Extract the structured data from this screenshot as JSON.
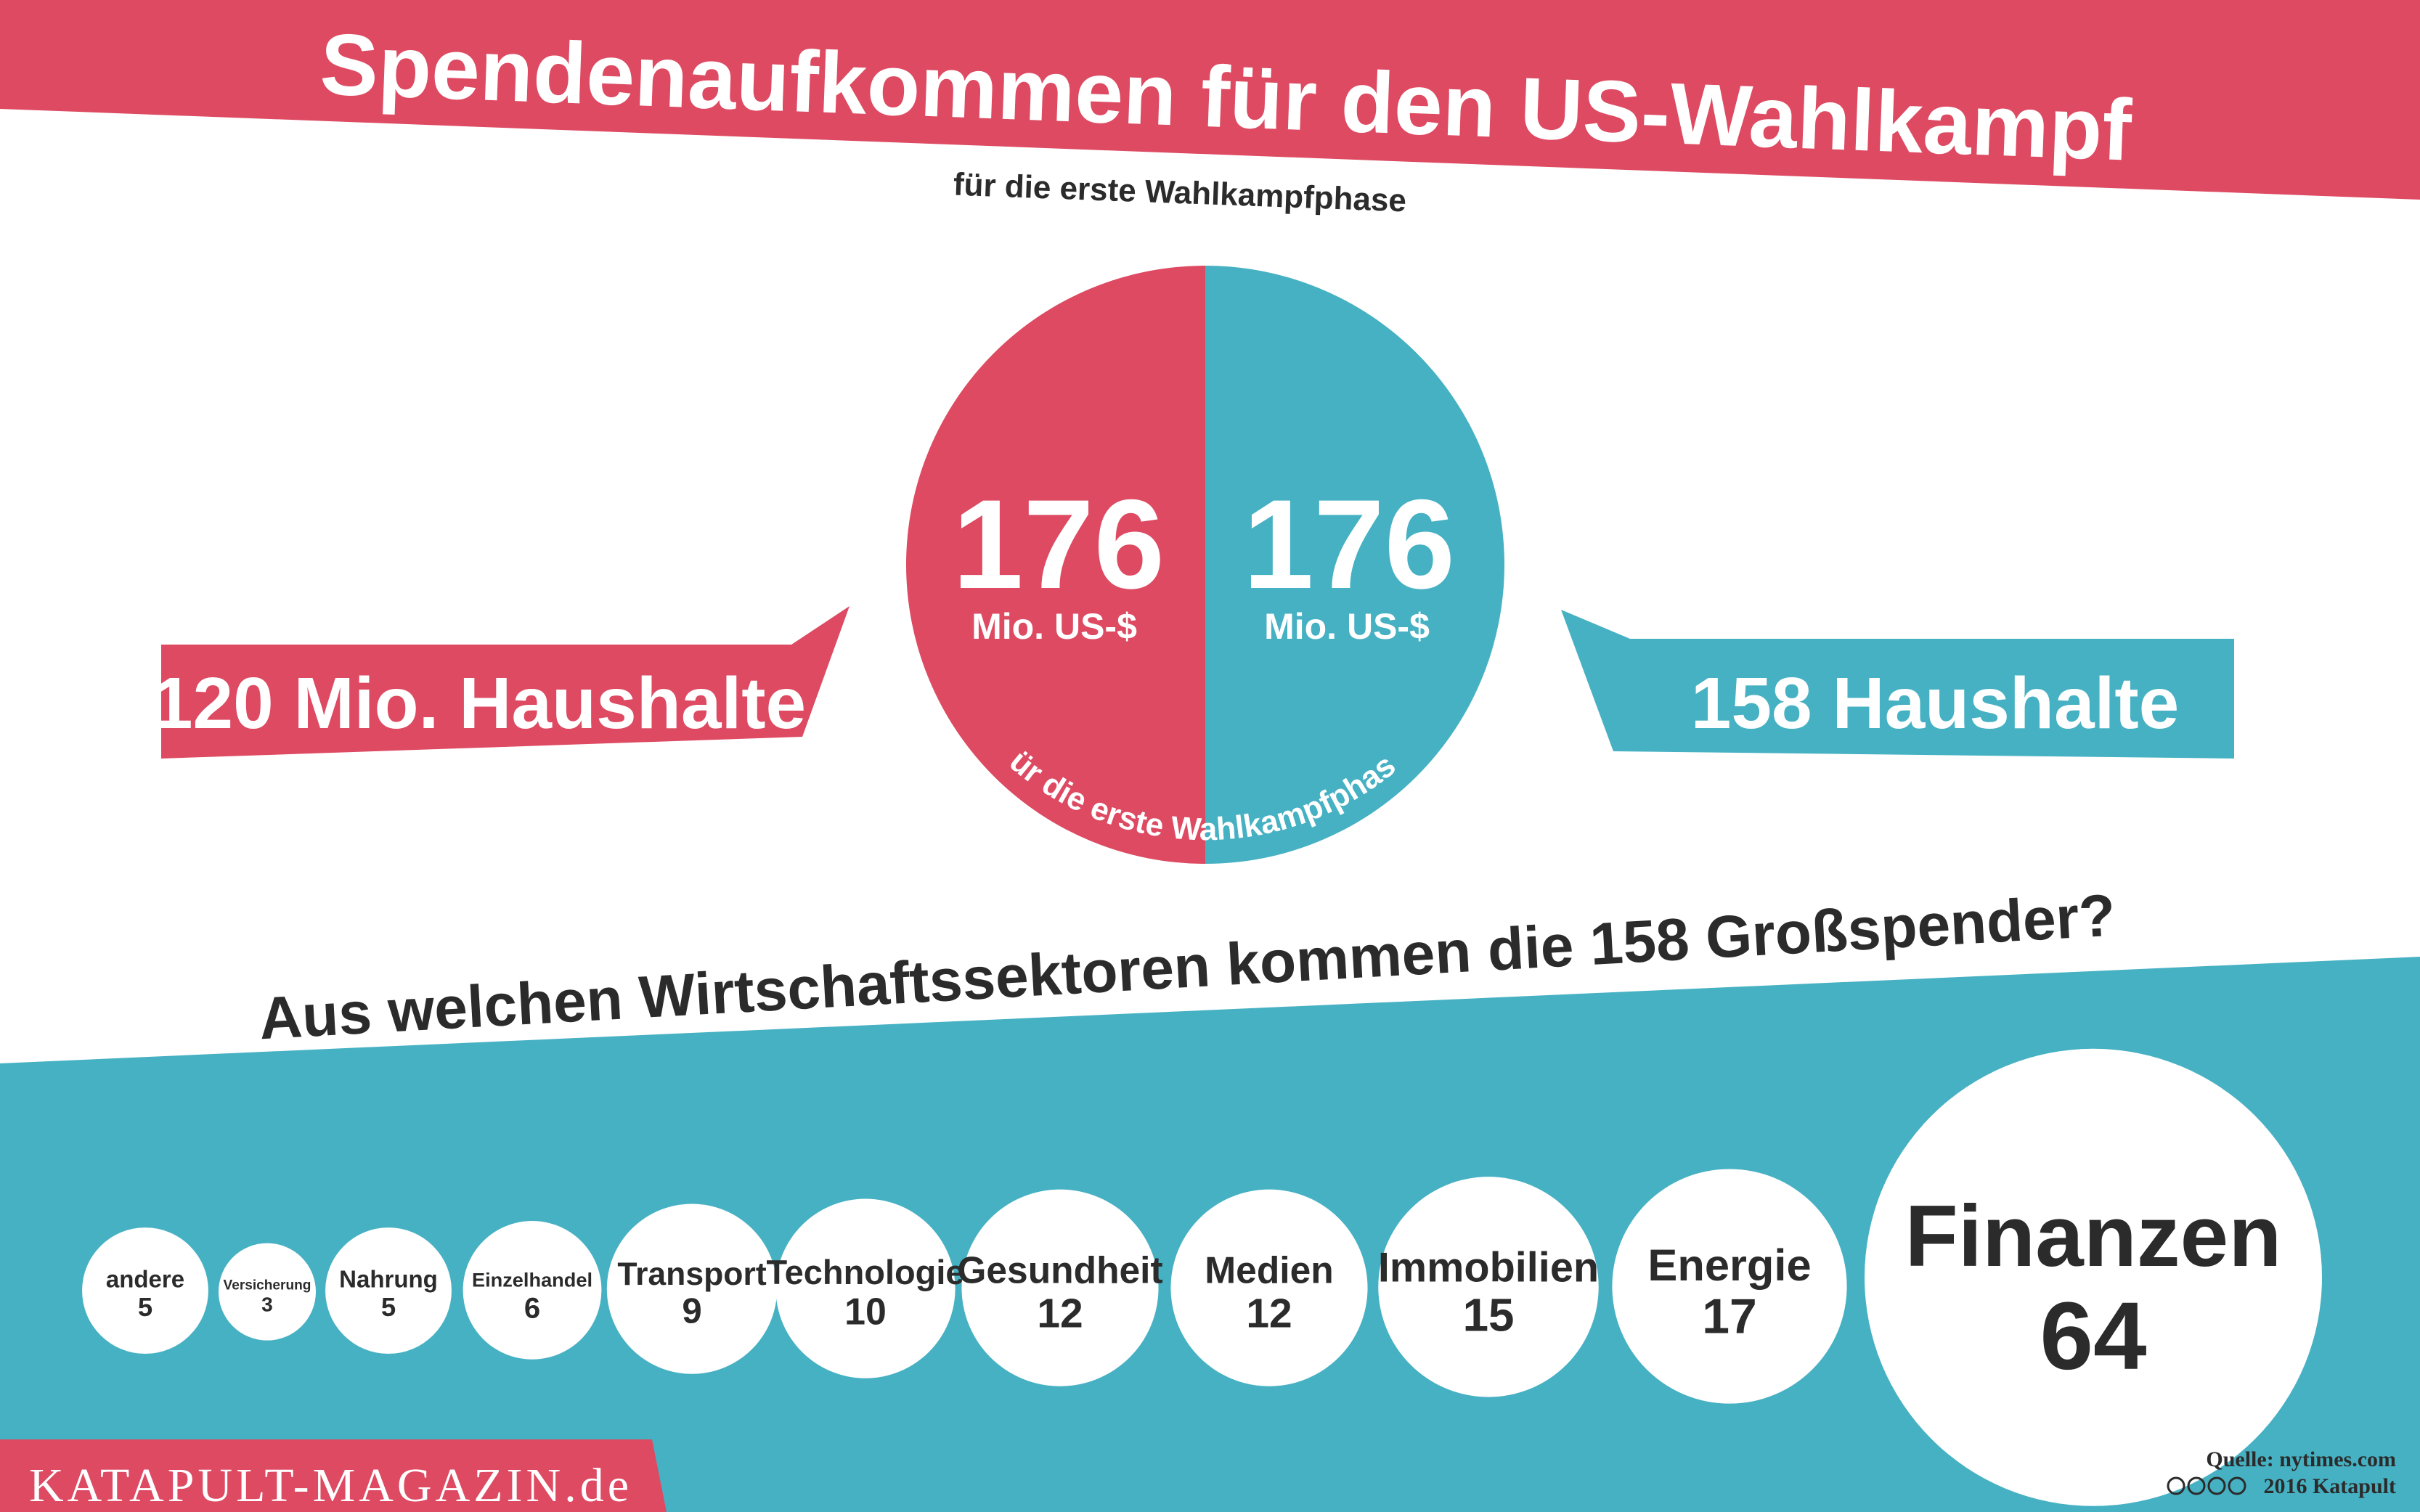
{
  "header": {
    "title": "Spendenaufkommen für den US-Wahlkampf",
    "subtitle": "für die erste Wahlkampfphase"
  },
  "colors": {
    "red": "#dd4a62",
    "teal": "#46b1c3",
    "dark": "#2b2b2b",
    "white": "#ffffff"
  },
  "comparison": {
    "left": {
      "value": "176",
      "unit": "Mio. US-$",
      "banner": "120 Mio. Haushalte"
    },
    "right": {
      "value": "176",
      "unit": "Mio. US-$",
      "banner": "158 Haushalte"
    },
    "arc_caption": "für die erste Wahlkampfphase"
  },
  "chart_data": {
    "type": "bubble",
    "title": "Aus welchen Wirtschaftssektoren kommen die 158 Großspender?",
    "categories": [
      "andere",
      "Versicherung",
      "Nahrung",
      "Einzelhandel",
      "Transport",
      "Technologie",
      "Gesundheit",
      "Medien",
      "Immobilien",
      "Energie",
      "Finanzen"
    ],
    "values": [
      5,
      3,
      5,
      6,
      9,
      10,
      12,
      12,
      15,
      17,
      64
    ],
    "pie": {
      "slices": [
        {
          "label": "120 Mio. Haushalte",
          "value": 176,
          "color": "#dd4a62"
        },
        {
          "label": "158 Haushalte",
          "value": 176,
          "color": "#46b1c3"
        }
      ]
    }
  },
  "footer": {
    "logo": "KATAPULT-MAGAZIN.de",
    "source": "Quelle: nytimes.com",
    "copyright": "2016 Katapult"
  }
}
